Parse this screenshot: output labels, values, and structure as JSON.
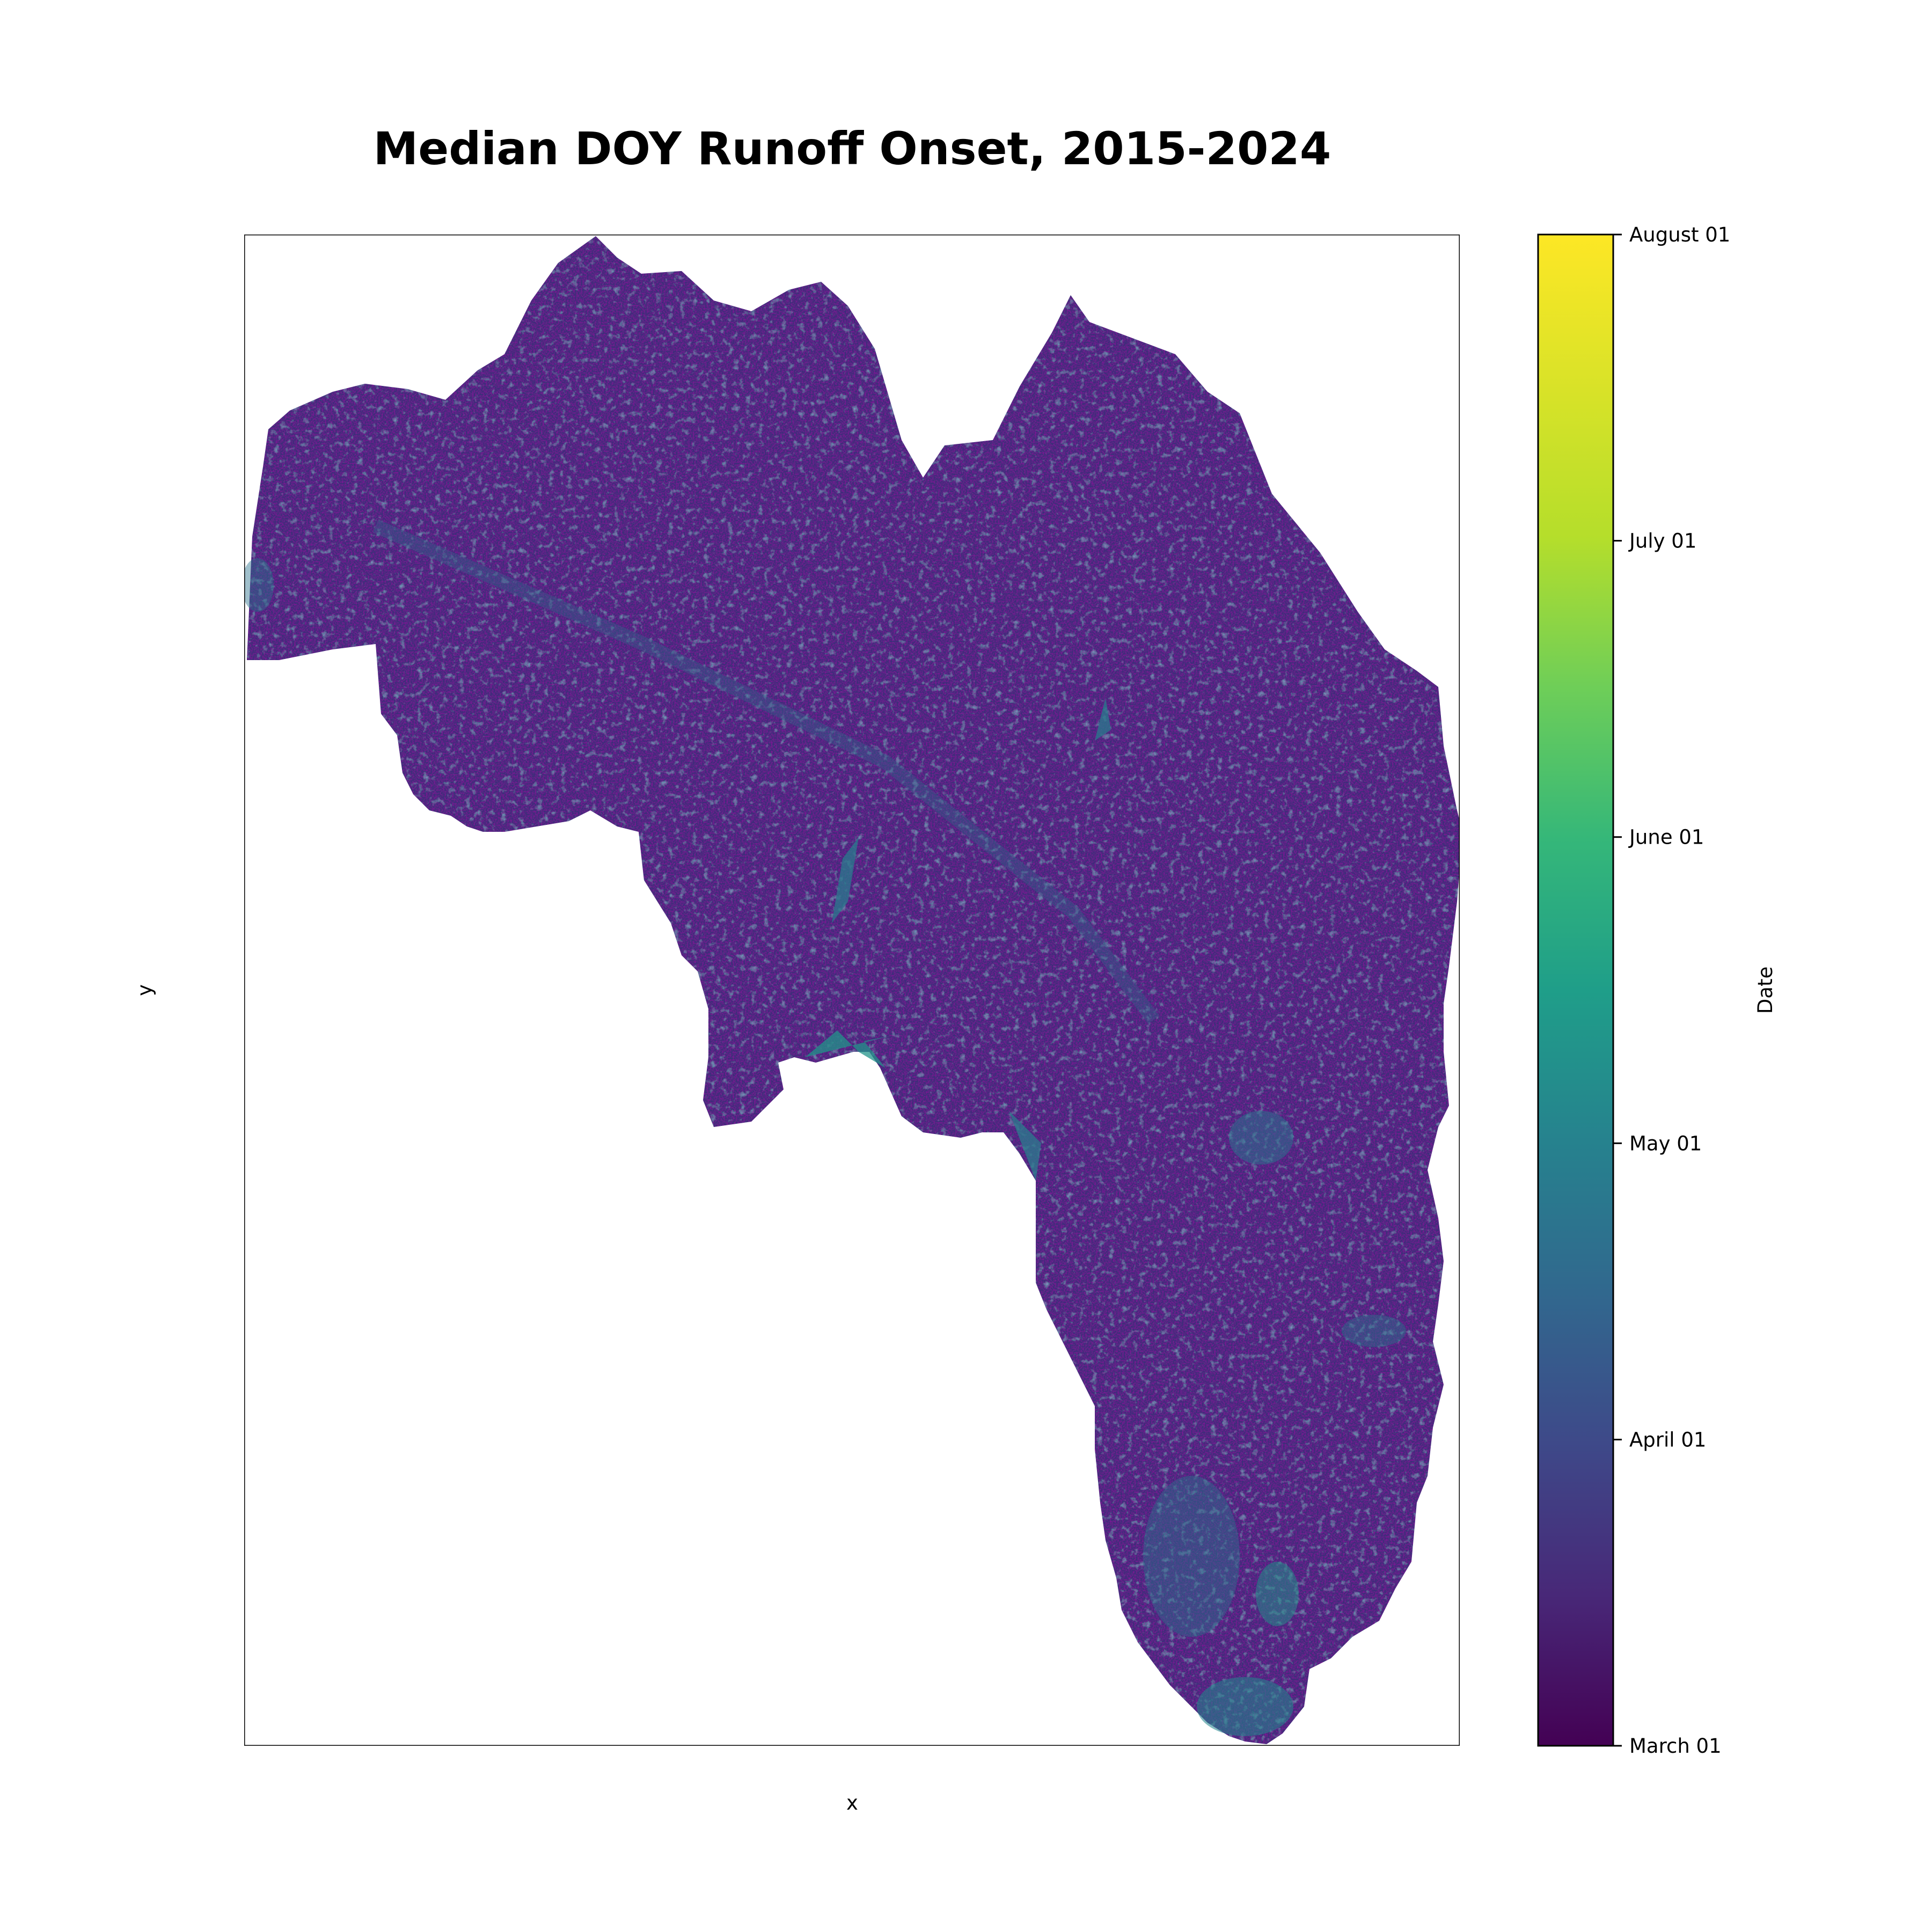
{
  "chart_data": {
    "type": "heatmap",
    "title": "Median DOY Runoff Onset, 2015-2024",
    "xlabel": "x",
    "ylabel": "y",
    "colormap": "viridis",
    "colorbar": {
      "label": "Date",
      "range": [
        "March 01",
        "August 01"
      ],
      "ticks": [
        "March 01",
        "April 01",
        "May 01",
        "June 01",
        "July 01",
        "August 01"
      ]
    },
    "value_distribution": {
      "dominant": "March 15 - April 10",
      "highlights": "late April - May 25 along valley floors and southern tip"
    }
  },
  "colors": {
    "dark": "#440154",
    "dominant": "#3b2f7a",
    "mid": "#31688e",
    "high": "#22a884",
    "top": "#fde725"
  }
}
